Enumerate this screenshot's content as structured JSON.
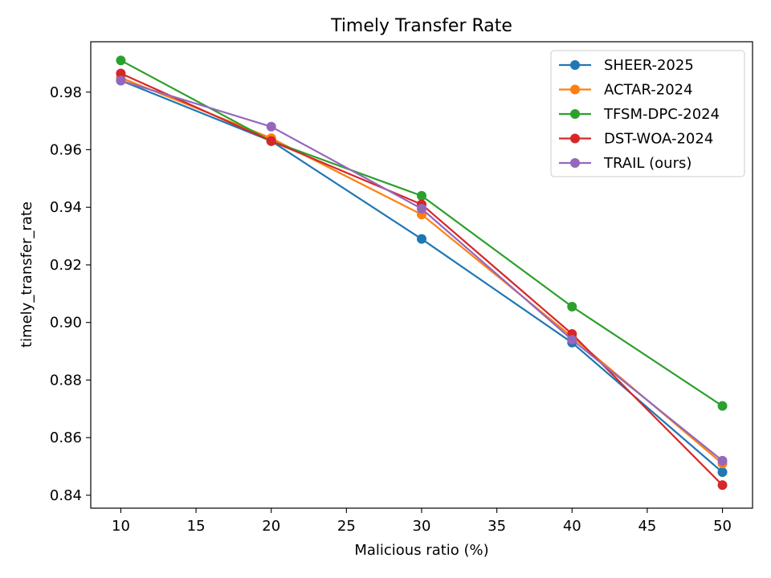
{
  "chart_data": {
    "type": "line",
    "title": "Timely Transfer Rate",
    "xlabel": "Malicious ratio (%)",
    "ylabel": "timely_transfer_rate",
    "x": [
      10,
      20,
      30,
      40,
      50
    ],
    "xlim": [
      8,
      52
    ],
    "ylim": [
      0.8355,
      0.9975
    ],
    "xticks": [
      10,
      15,
      20,
      25,
      30,
      35,
      40,
      45,
      50
    ],
    "yticks": [
      0.84,
      0.86,
      0.88,
      0.9,
      0.92,
      0.94,
      0.96,
      0.98
    ],
    "ytick_labels": [
      "0.84",
      "0.86",
      "0.88",
      "0.90",
      "0.92",
      "0.94",
      "0.96",
      "0.98"
    ],
    "grid": false,
    "legend_position": "top-right",
    "series": [
      {
        "name": "SHEER-2025",
        "color": "#1f77b4",
        "values": [
          0.984,
          0.963,
          0.929,
          0.893,
          0.848
        ]
      },
      {
        "name": "ACTAR-2024",
        "color": "#ff7f0e",
        "values": [
          0.985,
          0.964,
          0.9375,
          0.895,
          0.851
        ]
      },
      {
        "name": "TFSM-DPC-2024",
        "color": "#2ca02c",
        "values": [
          0.991,
          0.963,
          0.944,
          0.9055,
          0.871
        ]
      },
      {
        "name": "DST-WOA-2024",
        "color": "#d62728",
        "values": [
          0.9865,
          0.963,
          0.941,
          0.896,
          0.8435
        ]
      },
      {
        "name": "TRAIL (ours)",
        "color": "#9467bd",
        "values": [
          0.984,
          0.968,
          0.9395,
          0.894,
          0.852
        ]
      }
    ]
  }
}
